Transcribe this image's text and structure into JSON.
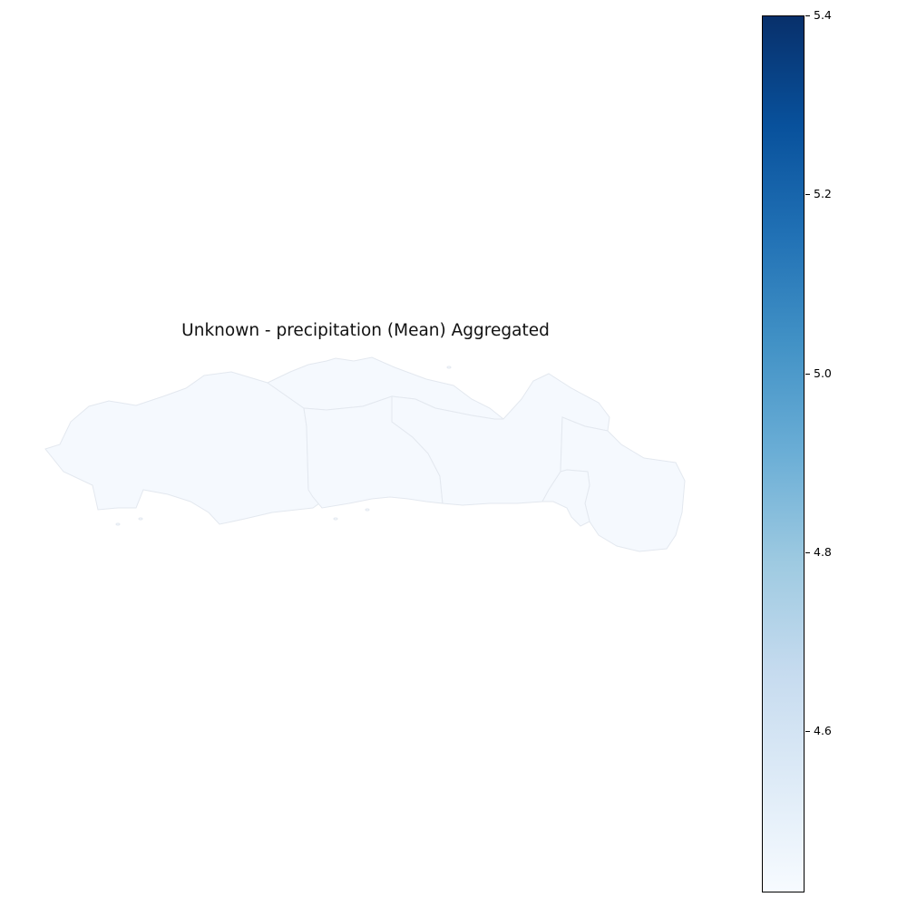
{
  "title": "Unknown - precipitation (Mean) Aggregated",
  "colormap": "Blues",
  "colors": {
    "low": "#f7fbff",
    "high": "#08306b",
    "region_fill": "#f5f9fe",
    "region_border": "#e3e8ef"
  },
  "colorbar": {
    "min": 4.42,
    "max": 5.4,
    "ticks": [
      {
        "value": 5.4,
        "label": "5.4"
      },
      {
        "value": 5.2,
        "label": "5.2"
      },
      {
        "value": 5.0,
        "label": "5.0"
      },
      {
        "value": 4.8,
        "label": "4.8"
      },
      {
        "value": 4.6,
        "label": "4.6"
      }
    ],
    "stops": [
      "#f7fbff",
      "#deebf7",
      "#c6dbef",
      "#9ecae1",
      "#6baed6",
      "#4292c6",
      "#2171b5",
      "#08519c",
      "#08306b"
    ]
  }
}
